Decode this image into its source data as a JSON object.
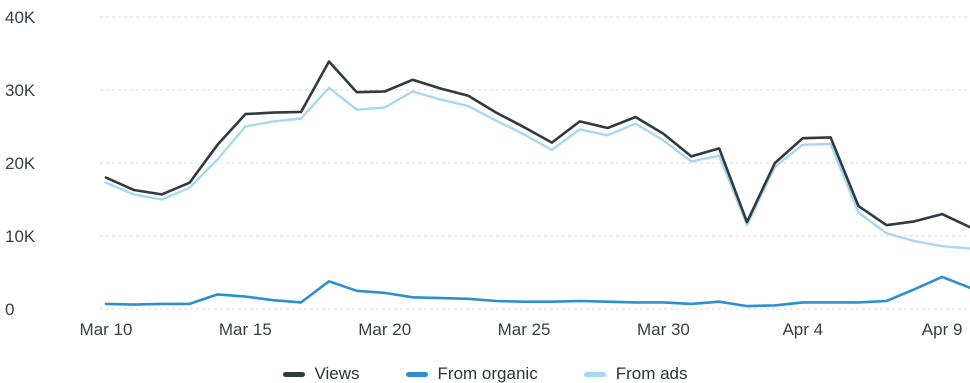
{
  "chart_data": {
    "type": "line",
    "title": "",
    "xlabel": "",
    "ylabel": "",
    "ylim": [
      0,
      40000
    ],
    "y_ticks": [
      0,
      10000,
      20000,
      30000,
      40000
    ],
    "y_tick_labels": [
      "0",
      "10K",
      "20K",
      "30K",
      "40K"
    ],
    "x_tick_labels": [
      "Mar 10",
      "Mar 15",
      "Mar 20",
      "Mar 25",
      "Mar 30",
      "Apr 4",
      "Apr 9"
    ],
    "grid": true,
    "legend_position": "bottom",
    "x": [
      "Mar 10",
      "Mar 11",
      "Mar 12",
      "Mar 13",
      "Mar 14",
      "Mar 15",
      "Mar 16",
      "Mar 17",
      "Mar 18",
      "Mar 19",
      "Mar 20",
      "Mar 21",
      "Mar 22",
      "Mar 23",
      "Mar 24",
      "Mar 25",
      "Mar 26",
      "Mar 27",
      "Mar 28",
      "Mar 29",
      "Mar 30",
      "Mar 31",
      "Apr 1",
      "Apr 2",
      "Apr 3",
      "Apr 4",
      "Apr 5",
      "Apr 6",
      "Apr 7",
      "Apr 8",
      "Apr 9",
      "Apr 10"
    ],
    "series": [
      {
        "name": "Views",
        "color": "#2f3b3f",
        "values": [
          18000,
          16300,
          15700,
          17300,
          22500,
          26700,
          26900,
          27000,
          33900,
          29700,
          29800,
          31400,
          30200,
          29200,
          26900,
          24900,
          22800,
          25700,
          24800,
          26300,
          24000,
          20900,
          22000,
          11900,
          20000,
          23400,
          23500,
          14100,
          11500,
          12000,
          13000,
          11200
        ]
      },
      {
        "name": "From organic",
        "color": "#2b8fd1",
        "values": [
          700,
          600,
          700,
          700,
          2000,
          1700,
          1200,
          900,
          3800,
          2500,
          2200,
          1600,
          1500,
          1400,
          1100,
          1000,
          1000,
          1100,
          1000,
          900,
          900,
          700,
          1000,
          400,
          500,
          900,
          900,
          900,
          1100,
          2700,
          4400,
          2900
        ]
      },
      {
        "name": "From ads",
        "color": "#a9d7f2",
        "values": [
          17300,
          15700,
          15000,
          16600,
          20500,
          25000,
          25700,
          26100,
          30300,
          27300,
          27600,
          29800,
          28700,
          27800,
          25800,
          23900,
          21800,
          24600,
          23800,
          25400,
          23100,
          20200,
          21000,
          11500,
          19500,
          22500,
          22600,
          13200,
          10400,
          9300,
          8600,
          8300
        ]
      }
    ]
  }
}
